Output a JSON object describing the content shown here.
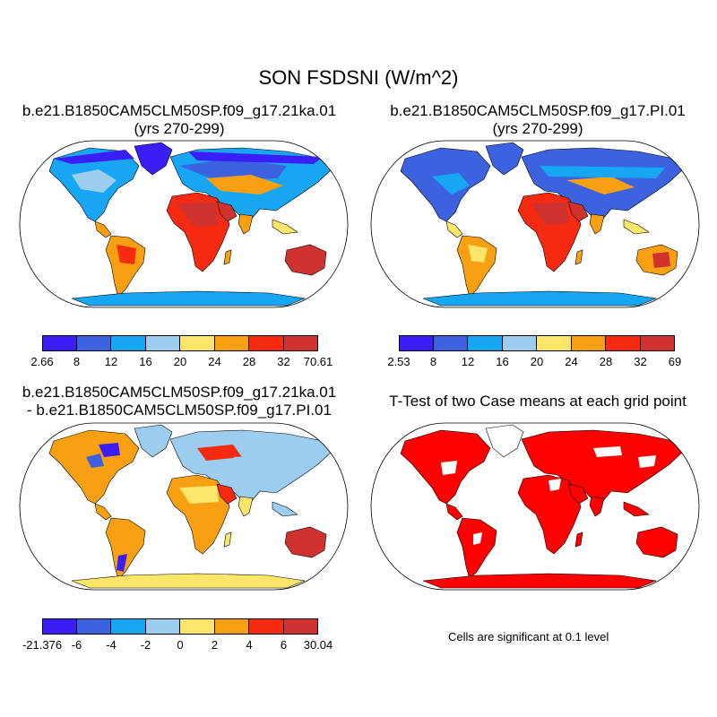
{
  "figure": {
    "title": "SON FSDSNI (W/m^2)"
  },
  "panels": [
    {
      "id": "case1",
      "title_line1": "b.e21.B1850CAM5CLM50SP.f09_g17.21ka.01",
      "title_line2": "(yrs 270-299)",
      "colorbar": {
        "colors": [
          "#3a1ef5",
          "#3d62e0",
          "#17a6f3",
          "#9ccdee",
          "#fbe66a",
          "#f9a012",
          "#f52a10",
          "#d0332f"
        ],
        "labels": [
          "2.66",
          "8",
          "12",
          "16",
          "20",
          "24",
          "28",
          "32",
          "70.61"
        ]
      }
    },
    {
      "id": "case2",
      "title_line1": "b.e21.B1850CAM5CLM50SP.f09_g17.PI.01",
      "title_line2": "(yrs 270-299)",
      "colorbar": {
        "colors": [
          "#3a1ef5",
          "#3d62e0",
          "#17a6f3",
          "#9ccdee",
          "#fbe66a",
          "#f9a012",
          "#f52a10",
          "#d0332f"
        ],
        "labels": [
          "2.53",
          "8",
          "12",
          "16",
          "20",
          "24",
          "28",
          "32",
          "69"
        ]
      }
    },
    {
      "id": "difference",
      "title_line1": "b.e21.B1850CAM5CLM50SP.f09_g17.21ka.01",
      "title_line2": "- b.e21.B1850CAM5CLM50SP.f09_g17.PI.01",
      "colorbar": {
        "colors": [
          "#3a1ef5",
          "#3d62e0",
          "#17a6f3",
          "#9ccdee",
          "#fbe66a",
          "#f9a012",
          "#f52a10",
          "#d0332f"
        ],
        "labels": [
          "-21.376",
          "-6",
          "-4",
          "-2",
          "0",
          "2",
          "4",
          "6",
          "30.04"
        ]
      }
    },
    {
      "id": "ttest",
      "title_line1": "T-Test of two Case means at each grid point",
      "note": "Cells are significant at 0.1 level",
      "significant_color": "#ff0000"
    }
  ]
}
